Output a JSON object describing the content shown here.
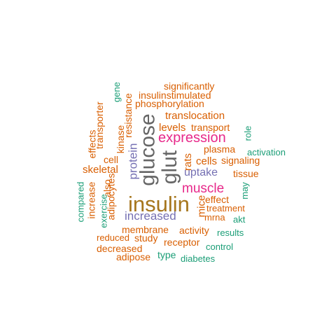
{
  "words": {
    "insulin": "insulin",
    "glucose": "glucose",
    "glut": "glut",
    "expression": "expression",
    "muscle": "muscle",
    "increased": "increased",
    "uptake": "uptake",
    "protein": "protein",
    "translocation": "translocation",
    "phosphorylation": "phosphorylation",
    "insulinstimulated": "insulinstimulated",
    "significantly": "significantly",
    "levels": "levels",
    "transport": "transport",
    "cells": "cells",
    "plasma": "plasma",
    "signaling": "signaling",
    "tissue": "tissue",
    "activation": "activation",
    "role": "role",
    "may": "may",
    "effect": "effect",
    "treatment": "treatment",
    "mice": "mice",
    "rats": "rats",
    "mrna": "mrna",
    "akt": "akt",
    "results": "results",
    "control": "control",
    "activity": "activity",
    "membrane": "membrane",
    "receptor": "receptor",
    "study": "study",
    "reduced": "reduced",
    "decreased": "decreased",
    "adipose": "adipose",
    "type": "type",
    "diabetes": "diabetes",
    "skeletal": "skeletal",
    "cell": "cell",
    "kinase": "kinase",
    "resistance": "resistance",
    "gene": "gene",
    "transporter": "transporter",
    "effects": "effects",
    "adipocytes": "adipocytes",
    "also": "also",
    "exercise": "exercise",
    "increase": "increase",
    "compared": "compared"
  },
  "colors": {
    "orange": "#d95f02",
    "teal": "#1b9e77",
    "purple": "#7570b3",
    "magenta": "#e7298a",
    "brown": "#a6761d",
    "gray": "#666666"
  }
}
